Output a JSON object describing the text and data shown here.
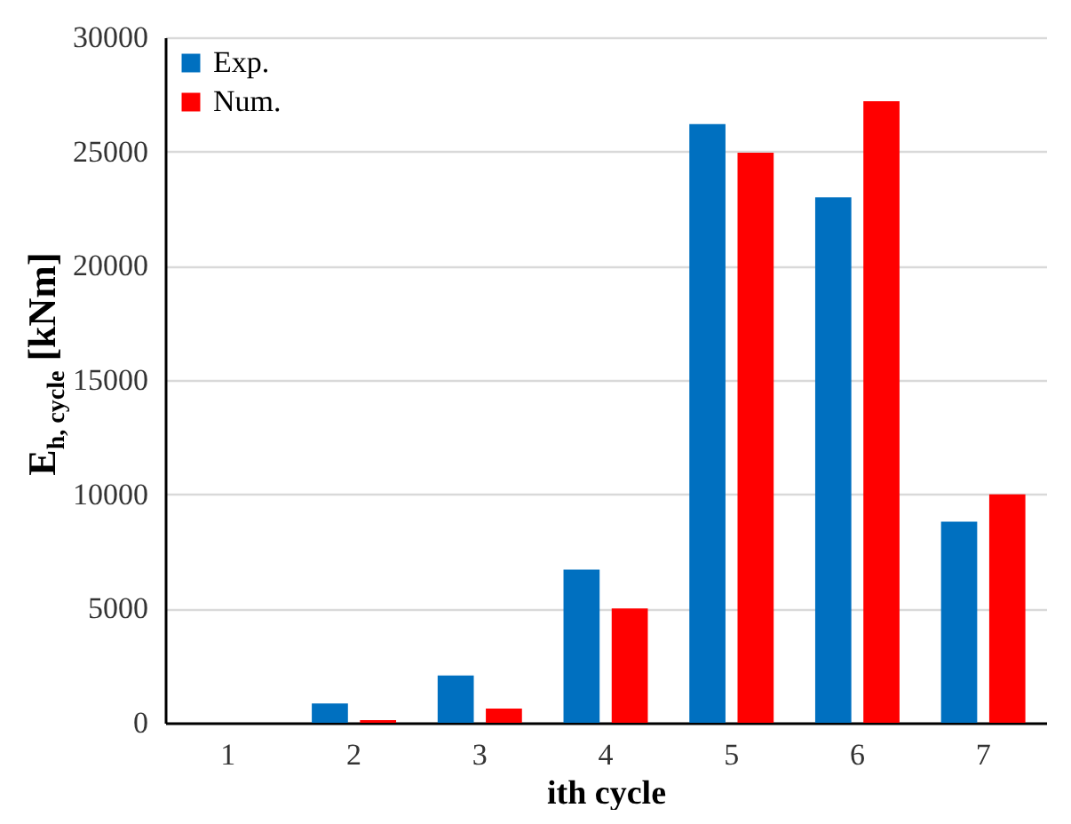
{
  "chart_data": {
    "type": "bar",
    "xlabel": "ith cycle",
    "ylabel": "E$_{h, cycle}$ [kNm]",
    "categories": [
      "1",
      "2",
      "3",
      "4",
      "5",
      "6",
      "7"
    ],
    "series": [
      {
        "name": "Exp.",
        "color": "#0070c0",
        "values": [
          0,
          850,
          2070,
          6700,
          26200,
          23000,
          8800
        ]
      },
      {
        "name": "Num.",
        "color": "#ff0000",
        "values": [
          0,
          120,
          620,
          5000,
          24950,
          27200,
          10000
        ]
      }
    ],
    "ylim": [
      0,
      30000
    ],
    "yticks": [
      0,
      5000,
      10000,
      15000,
      20000,
      25000,
      30000
    ],
    "grid": "y",
    "legend": "top left"
  }
}
